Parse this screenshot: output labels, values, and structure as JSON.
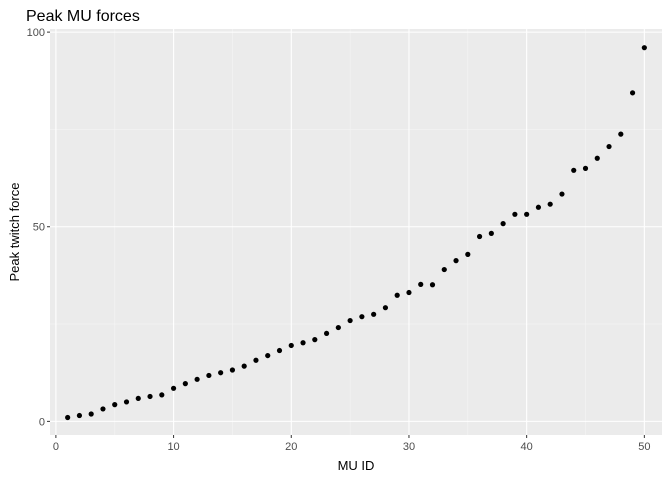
{
  "chart_data": {
    "type": "scatter",
    "title": "Peak MU forces",
    "xlabel": "MU ID",
    "ylabel": "Peak twitch force",
    "xlim": [
      -0.5,
      51.5
    ],
    "ylim": [
      -3.5,
      100.8
    ],
    "x_ticks": [
      0,
      10,
      20,
      30,
      40,
      50
    ],
    "y_ticks": [
      0,
      50,
      100
    ],
    "grid": true,
    "legend": "none",
    "colors": {
      "panel": "#ebebeb",
      "grid_major": "#ffffff",
      "grid_minor": "#f5f5f5",
      "point": "#000000",
      "tick": "#4d4d4d"
    },
    "x": [
      1,
      2,
      3,
      4,
      5,
      6,
      7,
      8,
      9,
      10,
      11,
      12,
      13,
      14,
      15,
      16,
      17,
      18,
      19,
      20,
      21,
      22,
      23,
      24,
      25,
      26,
      27,
      28,
      29,
      30,
      31,
      32,
      33,
      34,
      35,
      36,
      37,
      38,
      39,
      40,
      41,
      42,
      43,
      44,
      45,
      46,
      47,
      48,
      49,
      50
    ],
    "y": [
      1.0,
      1.5,
      1.9,
      3.2,
      4.3,
      5.0,
      5.9,
      6.4,
      6.8,
      8.5,
      9.7,
      10.8,
      11.8,
      12.5,
      13.2,
      14.2,
      15.7,
      16.9,
      18.2,
      19.5,
      20.2,
      21.0,
      22.6,
      24.1,
      25.9,
      26.9,
      27.5,
      29.2,
      32.4,
      33.1,
      35.2,
      35.1,
      39.0,
      41.3,
      42.9,
      47.5,
      48.3,
      50.8,
      53.2,
      53.2,
      55.0,
      55.8,
      58.4,
      64.5,
      65.0,
      67.6,
      70.6,
      73.8,
      84.4,
      96.0
    ]
  }
}
